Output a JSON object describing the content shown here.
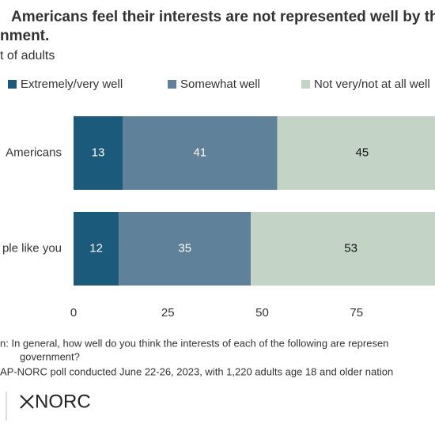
{
  "chart_data": {
    "type": "stacked-bar-horizontal",
    "title_lines": [
      "Americans feel their interests are not represented well by th",
      "nment."
    ],
    "subtitle": "t of adults",
    "categories": [
      " Americans",
      "ple like you"
    ],
    "series": [
      {
        "name": "Extremely/very well",
        "color": "#1b5a7a",
        "label_color": "#ffffff",
        "values": [
          13,
          12
        ]
      },
      {
        "name": "Somewhat well",
        "color": "#5f8199",
        "label_color": "#ffffff",
        "values": [
          41,
          35
        ]
      },
      {
        "name": "Not very/not at all well",
        "color": "#c3d4c7",
        "label_color": "#111111",
        "values": [
          45,
          53
        ]
      }
    ],
    "xlim": [
      0,
      100
    ],
    "xticks": [
      0,
      25,
      50,
      75
    ],
    "grid": false,
    "question_lines": [
      "n: In general, how well do you think the interests of each of the following are represen",
      "government?"
    ],
    "source": "AP-NORC poll conducted June 22-26, 2023, with 1,220 adults age 18 and older nation",
    "logo": "NORC"
  }
}
